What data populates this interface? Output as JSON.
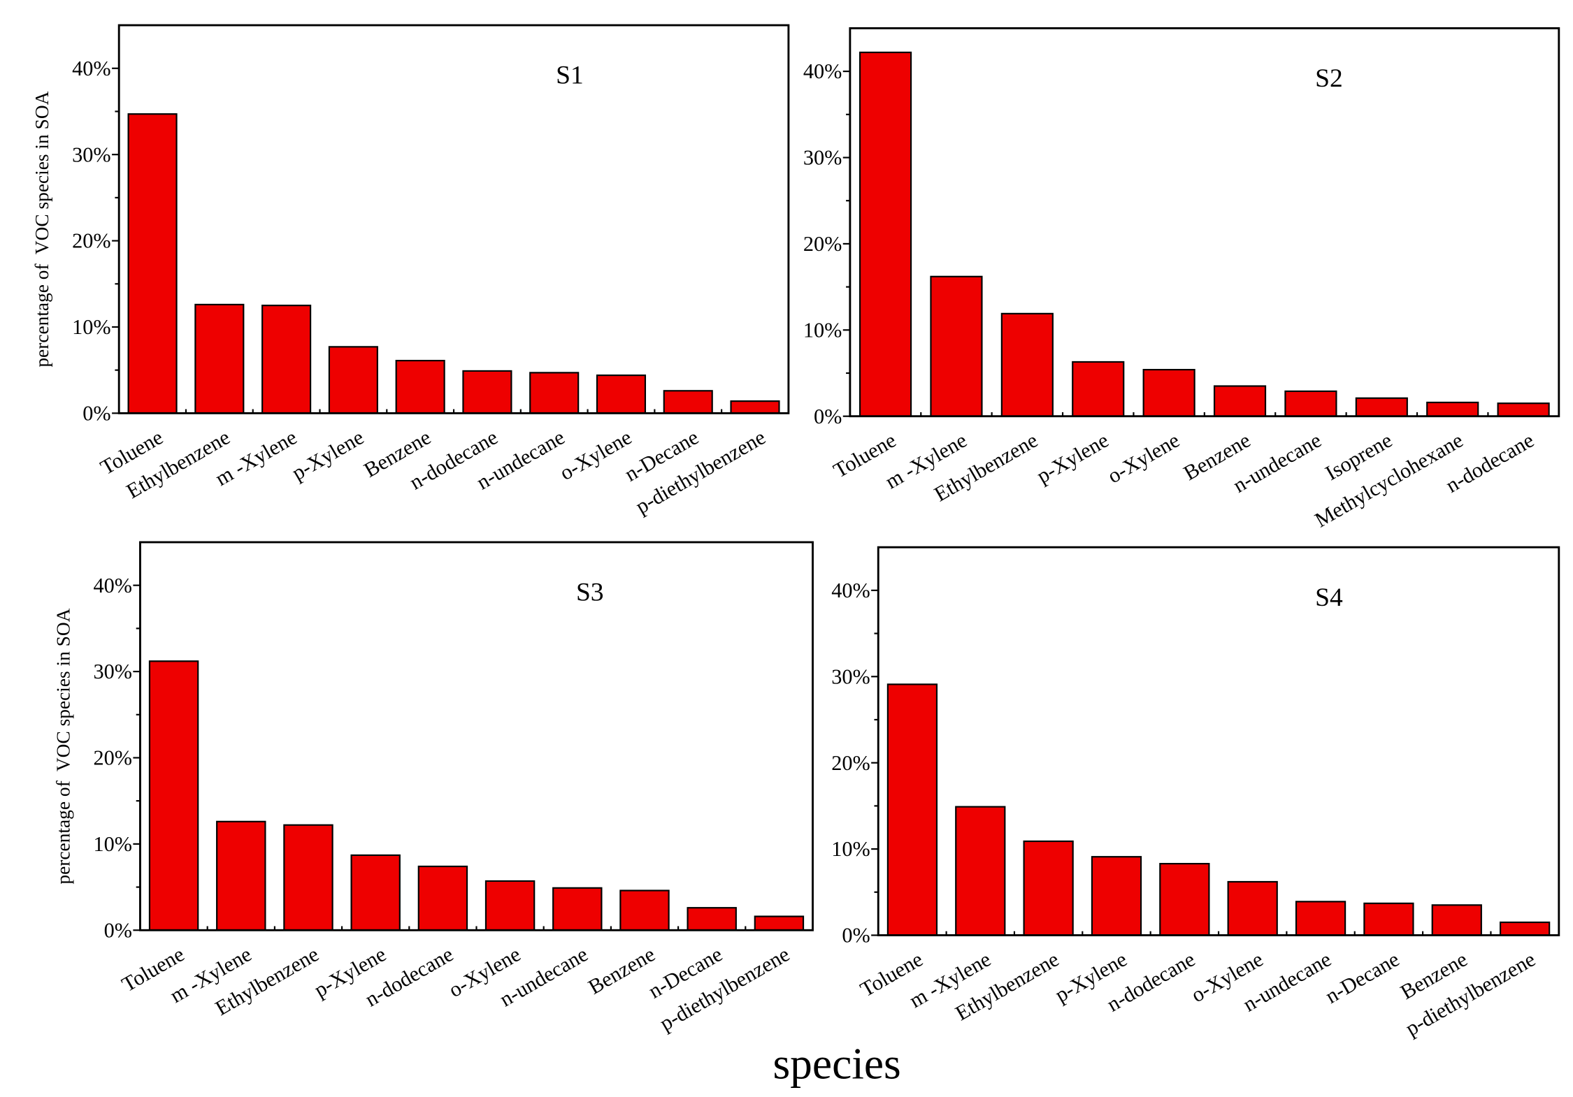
{
  "chart_data": [
    {
      "type": "bar",
      "title": "S1",
      "ylabel": "percentage of  VOC species in SOA",
      "ylim": [
        0,
        45
      ],
      "yticks": [
        "0%",
        "10%",
        "20%",
        "30%",
        "40%"
      ],
      "bar_color": "#EE0000",
      "categories": [
        "Toluene",
        "Ethylbenzene",
        "m -Xylene",
        "p-Xylene",
        "Benzene",
        "n-dodecane",
        "n-undecane",
        "o-Xylene",
        "n-Decane",
        "p-diethylbenzene"
      ],
      "values": [
        34.7,
        12.6,
        12.5,
        7.7,
        6.1,
        4.9,
        4.7,
        4.4,
        2.6,
        1.4
      ]
    },
    {
      "type": "bar",
      "title": "S2",
      "ylabel": "",
      "ylim": [
        0,
        45
      ],
      "yticks": [
        "0%",
        "10%",
        "20%",
        "30%",
        "40%"
      ],
      "bar_color": "#EE0000",
      "categories": [
        "Toluene",
        "m -Xylene",
        "Ethylbenzene",
        "p-Xylene",
        "o-Xylene",
        "Benzene",
        "n-undecane",
        "Isoprene",
        "Methylcyclohexane",
        "n-dodecane"
      ],
      "values": [
        42.2,
        16.2,
        11.9,
        6.3,
        5.4,
        3.5,
        2.9,
        2.1,
        1.6,
        1.5
      ]
    },
    {
      "type": "bar",
      "title": "S3",
      "ylabel": "percentage of  VOC species in SOA",
      "ylim": [
        0,
        45
      ],
      "yticks": [
        "0%",
        "10%",
        "20%",
        "30%",
        "40%"
      ],
      "bar_color": "#EE0000",
      "categories": [
        "Toluene",
        "m -Xylene",
        "Ethylbenzene",
        "p-Xylene",
        "n-dodecane",
        "o-Xylene",
        "n-undecane",
        "Benzene",
        "n-Decane",
        "p-diethylbenzene"
      ],
      "values": [
        31.2,
        12.6,
        12.2,
        8.7,
        7.4,
        5.7,
        4.9,
        4.6,
        2.6,
        1.6
      ]
    },
    {
      "type": "bar",
      "title": "S4",
      "ylabel": "",
      "ylim": [
        0,
        45
      ],
      "yticks": [
        "0%",
        "10%",
        "20%",
        "30%",
        "40%"
      ],
      "bar_color": "#EE0000",
      "categories": [
        "Toluene",
        "m -Xylene",
        "Ethylbenzene",
        "p-Xylene",
        "n-dodecane",
        "o-Xylene",
        "n-undecane",
        "n-Decane",
        "Benzene",
        "p-diethylbenzene"
      ],
      "values": [
        29.1,
        14.9,
        10.9,
        9.1,
        8.3,
        6.2,
        3.9,
        3.7,
        3.5,
        1.5
      ]
    }
  ],
  "xlabel": "species"
}
